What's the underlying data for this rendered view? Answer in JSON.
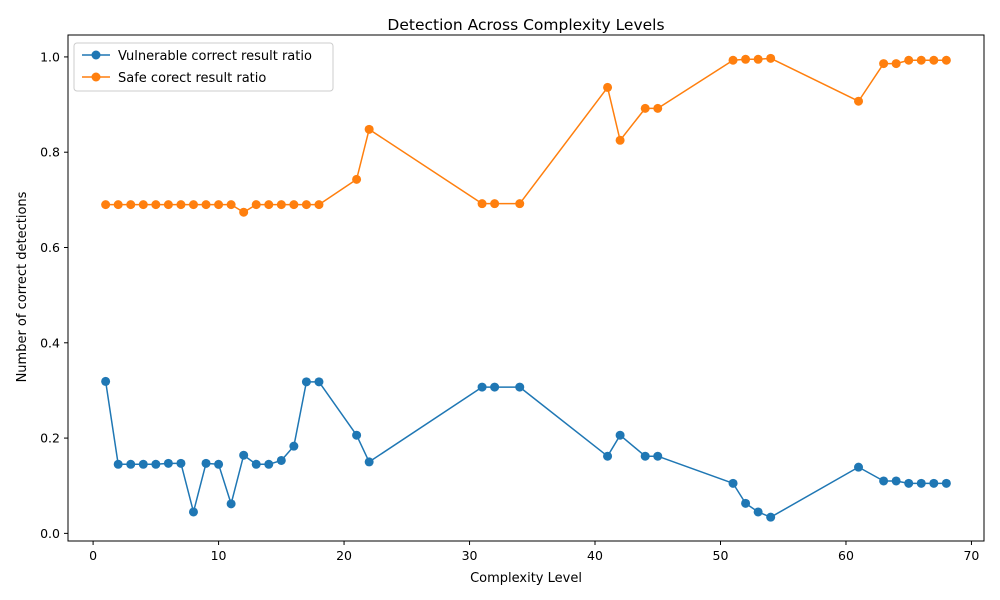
{
  "chart_data": {
    "type": "line",
    "title": "Detection Across Complexity Levels",
    "xlabel": "Complexity Level",
    "ylabel": "Number of correct detections",
    "xlim": [
      -2,
      71
    ],
    "ylim": [
      -0.016,
      1.046
    ],
    "xticks": [
      0,
      10,
      20,
      30,
      40,
      50,
      60,
      70
    ],
    "yticks": [
      0.0,
      0.2,
      0.4,
      0.6,
      0.8,
      1.0
    ],
    "xtick_labels": [
      "0",
      "10",
      "20",
      "30",
      "40",
      "50",
      "60",
      "70"
    ],
    "ytick_labels": [
      "0.0",
      "0.2",
      "0.4",
      "0.6",
      "0.8",
      "1.0"
    ],
    "grid": false,
    "legend_position": "top-left",
    "x": [
      1,
      2,
      3,
      4,
      5,
      6,
      7,
      8,
      9,
      10,
      11,
      12,
      13,
      14,
      15,
      16,
      17,
      18,
      21,
      22,
      31,
      32,
      34,
      41,
      42,
      44,
      45,
      51,
      52,
      53,
      54,
      61,
      63,
      64,
      65,
      66,
      67,
      68
    ],
    "series": [
      {
        "name": "Vulnerable correct result ratio",
        "color": "#1f77b4",
        "values": [
          0.319,
          0.145,
          0.145,
          0.145,
          0.145,
          0.147,
          0.147,
          0.045,
          0.147,
          0.145,
          0.062,
          0.164,
          0.145,
          0.145,
          0.153,
          0.183,
          0.318,
          0.318,
          0.206,
          0.15,
          0.307,
          0.307,
          0.307,
          0.162,
          0.206,
          0.162,
          0.162,
          0.105,
          0.063,
          0.045,
          0.034,
          0.139,
          0.11,
          0.11,
          0.105,
          0.105,
          0.105,
          0.105
        ]
      },
      {
        "name": "Safe corect result ratio",
        "color": "#ff7f0e",
        "values": [
          0.69,
          0.69,
          0.69,
          0.69,
          0.69,
          0.69,
          0.69,
          0.69,
          0.69,
          0.69,
          0.69,
          0.674,
          0.69,
          0.69,
          0.69,
          0.69,
          0.69,
          0.69,
          0.743,
          0.848,
          0.692,
          0.692,
          0.692,
          0.936,
          0.825,
          0.892,
          0.892,
          0.993,
          0.995,
          0.995,
          0.997,
          0.907,
          0.986,
          0.986,
          0.993,
          0.993,
          0.993,
          0.993
        ]
      }
    ]
  }
}
